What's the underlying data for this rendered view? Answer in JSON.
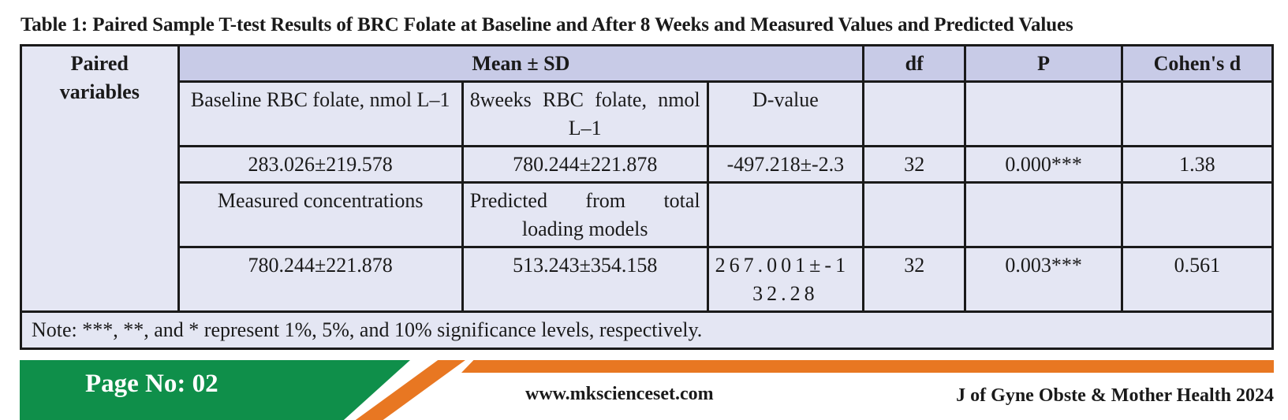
{
  "caption": "Table 1: Paired Sample T-test Results of BRC Folate at Baseline and After 8 Weeks and Measured Values and Predicted Values",
  "table": {
    "headers": {
      "paired_variables": "Paired variables",
      "mean_sd": "Mean ± SD",
      "df": "df",
      "p": "P",
      "cohens_d": "Cohen's d"
    },
    "pair1": {
      "col1_label": "Baseline RBC folate, nmol L–1",
      "col2_label": "8weeks RBC folate, nmol L–1",
      "col3_label": "D-value",
      "col1_value": "283.026±219.578",
      "col2_value": "780.244±221.878",
      "col3_value": "-497.218±-2.3",
      "df": "32",
      "p": "0.000***",
      "cohens_d": "1.38"
    },
    "pair2": {
      "col1_label": "Measured concentrations",
      "col2_label": "Predicted from total loading models",
      "col1_value": "780.244±221.878",
      "col2_value": "513.243±354.158",
      "col3_value": "267.001±-132.28",
      "df": "32",
      "p": "0.003***",
      "cohens_d": "0.561"
    },
    "note": "Note: ***, **, and * represent 1%, 5%, and 10% significance levels, respectively."
  },
  "footer": {
    "page_no": "Page No: 02",
    "website": "www.mkscienceset.com",
    "journal": "J of Gyne Obste & Mother Health 2024"
  },
  "colors": {
    "header_fill": "#c8cbe7",
    "body_fill": "#e4e6f3",
    "footer_green": "#0f8f4a",
    "footer_orange": "#e87722"
  }
}
